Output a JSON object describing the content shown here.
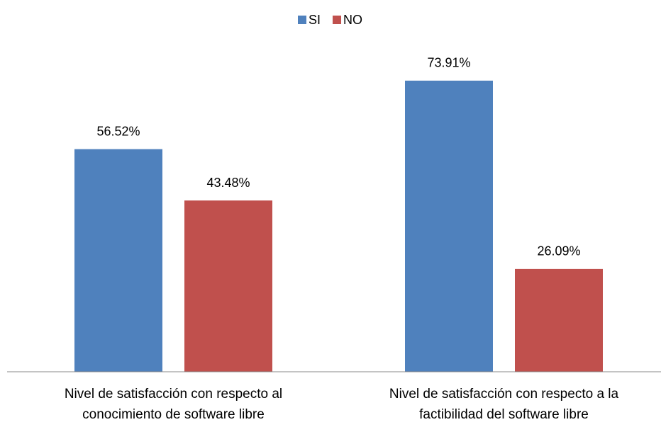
{
  "chart_data": {
    "type": "bar",
    "categories": [
      "Nivel de satisfacción con respecto al conocimiento de software libre",
      "Nivel de satisfacción con respecto a la factibilidad del software libre"
    ],
    "series": [
      {
        "name": "SI",
        "color": "#4f81bd",
        "values": [
          56.52,
          73.91
        ],
        "value_labels": [
          "56.52%",
          "73.91%"
        ]
      },
      {
        "name": "NO",
        "color": "#c0504d",
        "values": [
          43.48,
          26.09
        ],
        "value_labels": [
          "43.48%",
          "26.09%"
        ]
      }
    ],
    "ylim": [
      0,
      80
    ],
    "legend": "top"
  }
}
